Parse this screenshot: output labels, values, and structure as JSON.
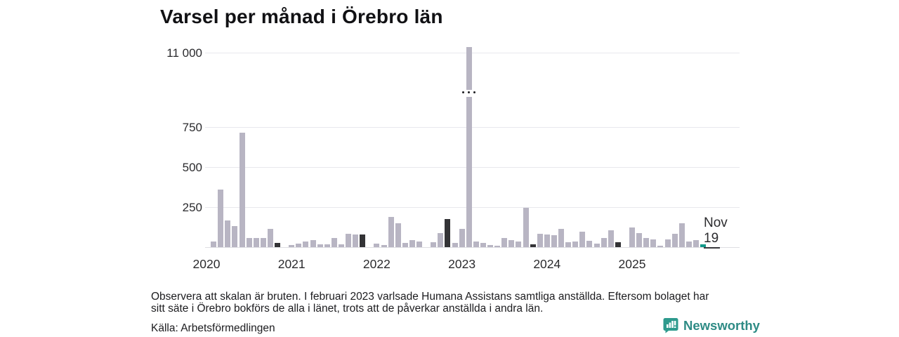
{
  "title": "Varsel per månad i Örebro län",
  "footnote": {
    "line1": "Observera att skalan är bruten. I februari 2023 varlsade Humana Assistans samtliga anställda. Eftersom bolaget har",
    "line2": "sitt säte i Örebro bokförs de alla i länet, trots att de påverkar anställda i andra län."
  },
  "source": "Källa: Arbetsförmedlingen",
  "brand": {
    "name": "Newsworthy",
    "icon": "newsworthy-speech-bubble-bar-chart"
  },
  "annotation": {
    "month_label": "Nov",
    "value_label": "19"
  },
  "colors": {
    "bar_default": "#b8b5c3",
    "bar_highlight_dark": "#333336",
    "bar_accent_teal": "#12998a",
    "brand_teal": "#2e8b85",
    "gridline": "#e8e8ed",
    "text": "#2b2b2e"
  },
  "chart_data": {
    "type": "bar",
    "title": "Varsel per månad i Örebro län",
    "xlabel": "",
    "ylabel": "",
    "x_tick_labels": [
      "2020",
      "2021",
      "2022",
      "2023",
      "2024",
      "2025"
    ],
    "y_tick_labels": [
      "250",
      "500",
      "750",
      "11 000"
    ],
    "y_ticks_values": [
      250,
      500,
      750,
      11000
    ],
    "broken_axis": true,
    "break_between": [
      800,
      10800
    ],
    "grid": true,
    "legend": "none",
    "note": "dark bars mark November of each previous year; teal bar is current month Nov 2025; Feb 2023 bar is cut by an axis break",
    "months": [
      {
        "month": "jan 2020",
        "value": 0
      },
      {
        "month": "feb 2020",
        "value": 34
      },
      {
        "month": "mar 2020",
        "value": 361
      },
      {
        "month": "apr 2020",
        "value": 167
      },
      {
        "month": "maj 2020",
        "value": 131
      },
      {
        "month": "jun 2020",
        "value": 713
      },
      {
        "month": "jul 2020",
        "value": 55
      },
      {
        "month": "aug 2020",
        "value": 55
      },
      {
        "month": "sep 2020",
        "value": 55
      },
      {
        "month": "okt 2020",
        "value": 116
      },
      {
        "month": "nov 2020",
        "value": 26,
        "style": "dark"
      },
      {
        "month": "dec 2020",
        "value": 0
      },
      {
        "month": "jan 2021",
        "value": 13
      },
      {
        "month": "feb 2021",
        "value": 23
      },
      {
        "month": "mar 2021",
        "value": 33
      },
      {
        "month": "apr 2021",
        "value": 45
      },
      {
        "month": "maj 2021",
        "value": 19
      },
      {
        "month": "jun 2021",
        "value": 19
      },
      {
        "month": "jul 2021",
        "value": 56
      },
      {
        "month": "aug 2021",
        "value": 16
      },
      {
        "month": "sep 2021",
        "value": 85
      },
      {
        "month": "okt 2021",
        "value": 80
      },
      {
        "month": "nov 2021",
        "value": 80,
        "style": "dark"
      },
      {
        "month": "dec 2021",
        "value": 0
      },
      {
        "month": "jan 2022",
        "value": 21
      },
      {
        "month": "feb 2022",
        "value": 13
      },
      {
        "month": "mar 2022",
        "value": 190
      },
      {
        "month": "apr 2022",
        "value": 148
      },
      {
        "month": "maj 2022",
        "value": 27
      },
      {
        "month": "jun 2022",
        "value": 46
      },
      {
        "month": "jul 2022",
        "value": 34
      },
      {
        "month": "aug 2022",
        "value": 0
      },
      {
        "month": "sep 2022",
        "value": 31
      },
      {
        "month": "okt 2022",
        "value": 89
      },
      {
        "month": "nov 2022",
        "value": 175,
        "style": "dark"
      },
      {
        "month": "dec 2022",
        "value": 27
      },
      {
        "month": "jan 2023",
        "value": 116
      },
      {
        "month": "feb 2023",
        "value": 11000,
        "style": "broken"
      },
      {
        "month": "mar 2023",
        "value": 34
      },
      {
        "month": "apr 2023",
        "value": 27
      },
      {
        "month": "maj 2023",
        "value": 14
      },
      {
        "month": "jun 2023",
        "value": 8
      },
      {
        "month": "jul 2023",
        "value": 58
      },
      {
        "month": "aug 2023",
        "value": 45
      },
      {
        "month": "sep 2023",
        "value": 34
      },
      {
        "month": "okt 2023",
        "value": 247
      },
      {
        "month": "nov 2023",
        "value": 17,
        "style": "dark"
      },
      {
        "month": "dec 2023",
        "value": 85
      },
      {
        "month": "jan 2024",
        "value": 81
      },
      {
        "month": "feb 2024",
        "value": 73
      },
      {
        "month": "mar 2024",
        "value": 112
      },
      {
        "month": "apr 2024",
        "value": 31
      },
      {
        "month": "maj 2024",
        "value": 36
      },
      {
        "month": "jun 2024",
        "value": 95
      },
      {
        "month": "jul 2024",
        "value": 41
      },
      {
        "month": "aug 2024",
        "value": 20
      },
      {
        "month": "sep 2024",
        "value": 55
      },
      {
        "month": "okt 2024",
        "value": 105
      },
      {
        "month": "nov 2024",
        "value": 31,
        "style": "dark"
      },
      {
        "month": "dec 2024",
        "value": 0
      },
      {
        "month": "jan 2025",
        "value": 122
      },
      {
        "month": "feb 2025",
        "value": 86
      },
      {
        "month": "mar 2025",
        "value": 57
      },
      {
        "month": "apr 2025",
        "value": 47
      },
      {
        "month": "maj 2025",
        "value": 10
      },
      {
        "month": "jun 2025",
        "value": 50
      },
      {
        "month": "jul 2025",
        "value": 82
      },
      {
        "month": "aug 2025",
        "value": 148
      },
      {
        "month": "sep 2025",
        "value": 36
      },
      {
        "month": "okt 2025",
        "value": 46
      },
      {
        "month": "nov 2025",
        "value": 19,
        "style": "accent"
      }
    ]
  }
}
